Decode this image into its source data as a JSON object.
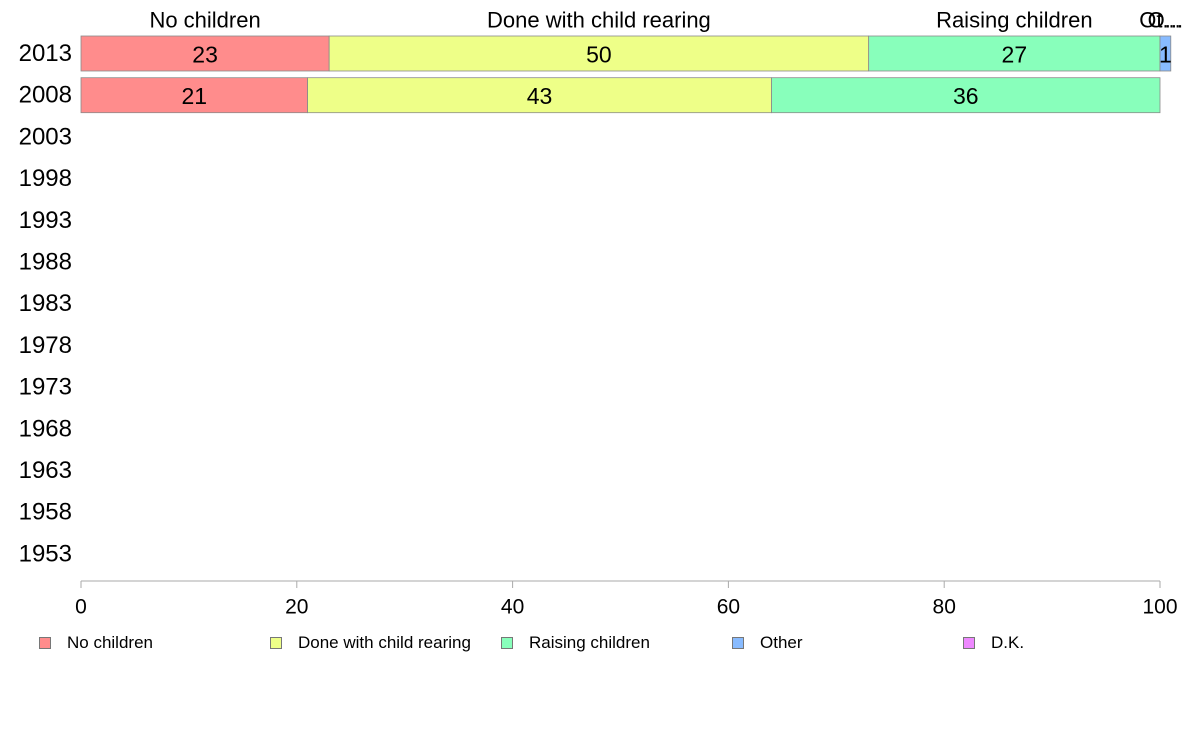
{
  "chart_data": {
    "type": "bar",
    "orientation": "horizontal",
    "stacked": true,
    "categories": [
      "2013",
      "2008",
      "2003",
      "1998",
      "1993",
      "1988",
      "1983",
      "1978",
      "1973",
      "1968",
      "1963",
      "1958",
      "1953"
    ],
    "series": [
      {
        "name": "No children",
        "values": [
          23,
          21,
          null,
          null,
          null,
          null,
          null,
          null,
          null,
          null,
          null,
          null,
          null
        ],
        "color": "#ff8c8c"
      },
      {
        "name": "Done with child rearing",
        "values": [
          50,
          43,
          null,
          null,
          null,
          null,
          null,
          null,
          null,
          null,
          null,
          null,
          null
        ],
        "color": "#eeff88"
      },
      {
        "name": "Raising children",
        "values": [
          27,
          36,
          null,
          null,
          null,
          null,
          null,
          null,
          null,
          null,
          null,
          null,
          null
        ],
        "color": "#88ffbb"
      },
      {
        "name": "Other",
        "values": [
          1,
          0,
          null,
          null,
          null,
          null,
          null,
          null,
          null,
          null,
          null,
          null,
          null
        ],
        "color": "#88bbff"
      },
      {
        "name": "D.K.",
        "values": [
          0,
          0,
          null,
          null,
          null,
          null,
          null,
          null,
          null,
          null,
          null,
          null,
          null
        ],
        "color": "#ee88ff"
      }
    ],
    "segment_labels": [
      [
        "23",
        "50",
        "27",
        "1"
      ],
      [
        "21",
        "43",
        "36"
      ]
    ],
    "column_headers": [
      "No children",
      "Done with child rearing",
      "Raising children",
      "O...",
      "Ot..."
    ],
    "xlim": [
      0,
      100
    ],
    "xticks": [
      "0",
      "20",
      "40",
      "60",
      "80",
      "100"
    ],
    "xlabel": "",
    "ylabel": "",
    "grid": false,
    "legend_position": "bottom"
  }
}
